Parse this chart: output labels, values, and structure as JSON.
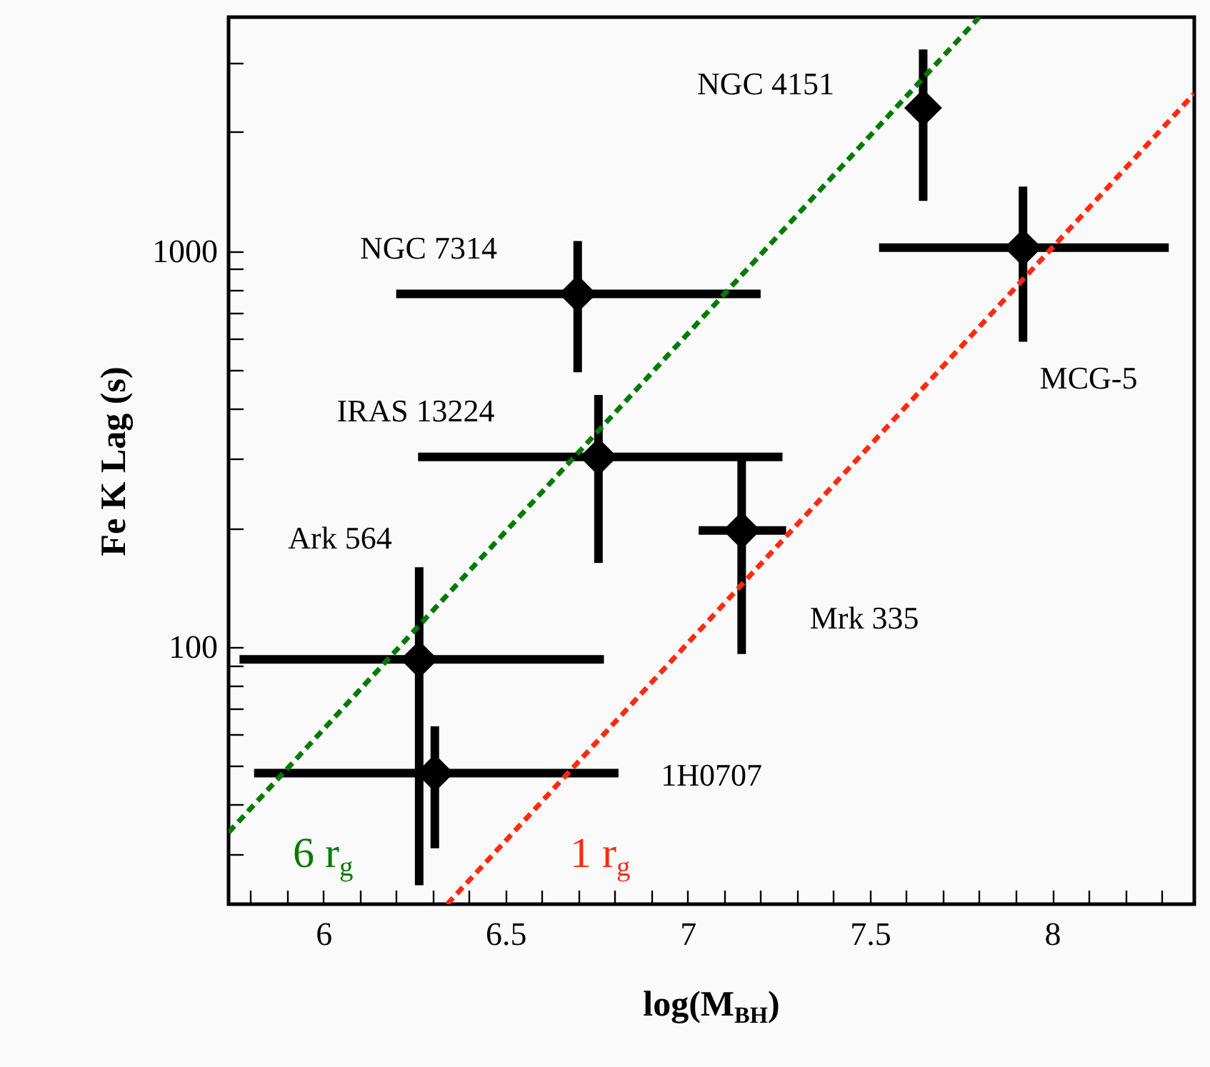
{
  "chart_data": {
    "type": "scatter",
    "xlabel": "log(M$_{BH}$)",
    "ylabel": "Fe K Lag (s)",
    "log": "y",
    "xlim": [
      5.74,
      8.39
    ],
    "ylim": [
      22.4,
      3900
    ],
    "xticks": [
      {
        "value": 5.8,
        "label": null
      },
      {
        "value": 5.9,
        "label": null
      },
      6,
      {
        "value": 6.1,
        "label": null
      },
      {
        "value": 6.2,
        "label": null
      },
      {
        "value": 6.3,
        "label": null
      },
      {
        "value": 6.4,
        "label": null
      },
      6.5,
      {
        "value": 6.6,
        "label": null
      },
      {
        "value": 6.7,
        "label": null
      },
      {
        "value": 6.8,
        "label": null
      },
      {
        "value": 6.9,
        "label": null
      },
      7,
      {
        "value": 7.1,
        "label": null
      },
      {
        "value": 7.2,
        "label": null
      },
      {
        "value": 7.3,
        "label": null
      },
      {
        "value": 7.4,
        "label": null
      },
      7.5,
      {
        "value": 7.6,
        "label": null
      },
      {
        "value": 7.7,
        "label": null
      },
      {
        "value": 7.8,
        "label": null
      },
      {
        "value": 7.9,
        "label": null
      },
      8,
      {
        "value": 8.1,
        "label": null
      },
      {
        "value": 8.2,
        "label": null
      },
      {
        "value": 8.3,
        "label": null
      }
    ],
    "yticks": [
      {
        "value": 30,
        "label": null
      },
      {
        "value": 40,
        "label": null
      },
      {
        "value": 50,
        "label": null
      },
      {
        "value": 60,
        "label": null
      },
      {
        "value": 70,
        "label": null
      },
      {
        "value": 80,
        "label": null
      },
      {
        "value": 90,
        "label": null
      },
      100,
      {
        "value": 200,
        "label": null
      },
      {
        "value": 300,
        "label": null
      },
      {
        "value": 400,
        "label": null
      },
      {
        "value": 500,
        "label": null
      },
      {
        "value": 600,
        "label": null
      },
      {
        "value": 700,
        "label": null
      },
      {
        "value": 800,
        "label": null
      },
      {
        "value": 900,
        "label": null
      },
      1000,
      {
        "value": 2000,
        "label": null
      },
      {
        "value": 3000,
        "label": null
      }
    ],
    "series": [
      {
        "marker": "diamond",
        "color": "#000000",
        "x": [
          7.646,
          7.92,
          6.698,
          6.755,
          7.148,
          6.263,
          6.306
        ],
        "values": [
          2300,
          1020,
          780,
          302,
          197,
          93,
          48
        ],
        "errors": [
          [
            1340,
            3230
          ],
          [
            590,
            1455
          ],
          [
            494,
            1060
          ],
          [
            163,
            433
          ],
          [
            96,
            297
          ],
          [
            25,
            159
          ],
          [
            31,
            63
          ]
        ],
        "xerrors": [
          null,
          [
            7.525,
            8.32
          ],
          [
            6.2,
            7.2
          ],
          [
            6.26,
            7.26
          ],
          [
            7.03,
            7.27
          ],
          [
            5.77,
            6.77
          ],
          [
            5.81,
            6.81
          ]
        ]
      },
      {
        "type": "line",
        "name": "6 r$_{g}$",
        "color": "#007a00",
        "line_style": "dashed",
        "x": [
          5.74,
          7.8
        ],
        "values": [
          34,
          3900
        ]
      },
      {
        "type": "line",
        "name": "1 r$_{g}$",
        "color": "#ff2a10",
        "line_style": "dashed",
        "x": [
          6.34,
          8.39
        ],
        "values": [
          22.4,
          2500
        ]
      }
    ],
    "annotations": [
      "NGC 4151",
      "NGC 7314",
      "MCG-5",
      "IRAS 13224",
      "Ark 564",
      "Mrk 335",
      "1H0707"
    ]
  }
}
